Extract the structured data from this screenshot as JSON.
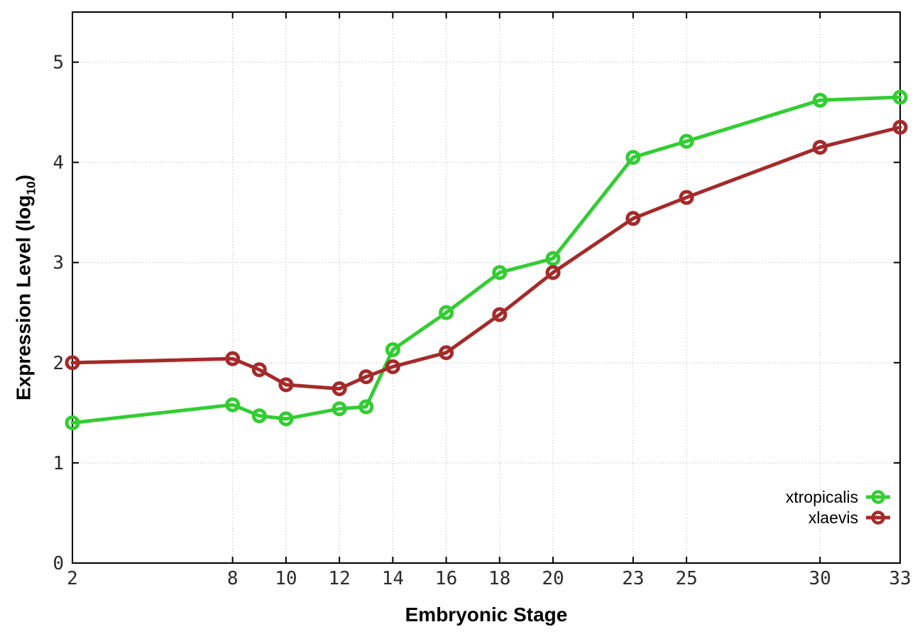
{
  "chart_data": {
    "type": "line",
    "title": "",
    "xlabel": "Embryonic Stage",
    "ylabel": "Expression Level (log10)",
    "ylabel_parts": {
      "prefix": "Expression Level (log",
      "sub": "10",
      "suffix": ")"
    },
    "x": [
      2,
      8,
      9,
      10,
      12,
      13,
      14,
      16,
      18,
      20,
      23,
      25,
      30,
      33
    ],
    "series": [
      {
        "name": "xtropicalis",
        "color": "#32cd32",
        "values": [
          1.4,
          1.58,
          1.47,
          1.44,
          1.54,
          1.56,
          2.13,
          2.5,
          2.9,
          3.04,
          4.05,
          4.21,
          4.62,
          4.65
        ]
      },
      {
        "name": "xlaevis",
        "color": "#a52a2a",
        "values": [
          2.0,
          2.04,
          1.93,
          1.78,
          1.74,
          1.86,
          1.96,
          2.1,
          2.48,
          2.9,
          3.44,
          3.65,
          4.15,
          4.35
        ]
      }
    ],
    "x_ticks": [
      2,
      8,
      10,
      12,
      14,
      16,
      18,
      20,
      23,
      25,
      30,
      33
    ],
    "y_ticks": [
      0,
      1,
      2,
      3,
      4,
      5
    ],
    "xlim": [
      2,
      33
    ],
    "ylim": [
      0,
      5.5
    ],
    "grid": true,
    "grid_color": "#b3b3b3",
    "border_color": "#000000",
    "tick_label_color": "#2a2a2a",
    "marker": "open-circle",
    "legend_position": "inside-right"
  }
}
